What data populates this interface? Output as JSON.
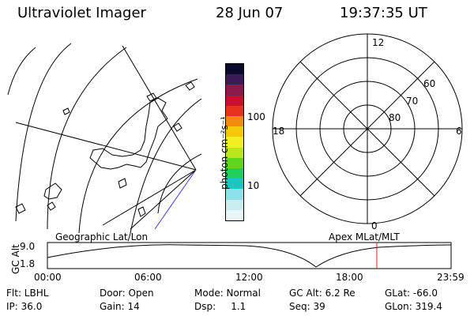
{
  "header": {
    "instrument": "Ultraviolet Imager",
    "date": "28 Jun 07",
    "time": "19:37:35 UT"
  },
  "colorbar": {
    "label": "photon cm⁻²s⁻¹",
    "ticks": [
      "100",
      "10"
    ],
    "colors": [
      "#0a0a2a",
      "#3b1a55",
      "#8a1a4a",
      "#c8102e",
      "#e8321e",
      "#f28a10",
      "#f5c80a",
      "#f0ee20",
      "#b8e81a",
      "#5ed61e",
      "#20d05a",
      "#1ac8c0",
      "#8ee0ea",
      "#c8eef2",
      "#e8f6f8"
    ]
  },
  "geo_panel": {
    "label": "Geographic Lat/Lon"
  },
  "polar_panel": {
    "label": "Apex MLat/MLT",
    "mlt_labels": {
      "top": "12",
      "bottom": "0",
      "left": "18",
      "right": "6"
    },
    "lat_labels": [
      "60",
      "70",
      "80"
    ]
  },
  "timeline": {
    "ylabel": "GC Alt",
    "yticks": [
      "9.0",
      "1.8"
    ],
    "xticks": [
      "00:00",
      "06:00",
      "12:00",
      "18:00",
      "23:59"
    ],
    "current_time_frac": 0.816,
    "curve_color": "#000000",
    "marker_color": "#e02020"
  },
  "footer": {
    "row1": [
      {
        "label": "Flt: LBHL"
      },
      {
        "label": "Door: Open"
      },
      {
        "label": "Mode: Normal"
      },
      {
        "label": "GC Alt: 6.2 Re"
      },
      {
        "label": "GLat: -66.0"
      }
    ],
    "row2": [
      {
        "label": "IP: 36.0"
      },
      {
        "label": "Gain: 14"
      },
      {
        "label": "Dsp:     1.1"
      },
      {
        "label": "Seq: 39"
      },
      {
        "label": "GLon: 319.4"
      }
    ]
  }
}
